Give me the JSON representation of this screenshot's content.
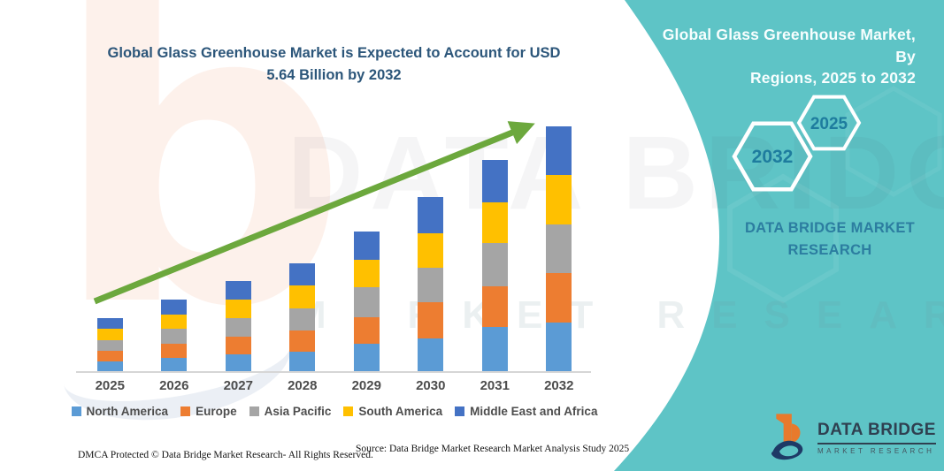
{
  "chart": {
    "title_line1": "Global Glass Greenhouse Market is Expected to Account for USD",
    "title_line2": "5.64 Billion by 2032"
  },
  "chart_data": {
    "type": "bar",
    "stacked": true,
    "title": "Global Glass Greenhouse Market is Expected to Account for USD 5.64 Billion by 2032",
    "categories": [
      "2025",
      "2026",
      "2027",
      "2028",
      "2029",
      "2030",
      "2031",
      "2032"
    ],
    "series": [
      {
        "name": "North America",
        "color": "#5B9BD5",
        "values": [
          0.23,
          0.31,
          0.39,
          0.45,
          0.63,
          0.76,
          1.01,
          1.12
        ]
      },
      {
        "name": "Europe",
        "color": "#ED7D31",
        "values": [
          0.24,
          0.32,
          0.41,
          0.49,
          0.62,
          0.83,
          0.94,
          1.14
        ]
      },
      {
        "name": "Asia Pacific",
        "color": "#A5A5A5",
        "values": [
          0.25,
          0.34,
          0.43,
          0.51,
          0.68,
          0.8,
          1.0,
          1.12
        ]
      },
      {
        "name": "South America",
        "color": "#FFC000",
        "values": [
          0.26,
          0.34,
          0.43,
          0.53,
          0.64,
          0.78,
          0.94,
          1.14
        ]
      },
      {
        "name": "Middle East and Africa",
        "color": "#4472C4",
        "values": [
          0.24,
          0.34,
          0.42,
          0.5,
          0.65,
          0.84,
          0.98,
          1.12
        ]
      }
    ],
    "totals": [
      1.22,
      1.65,
      2.08,
      2.48,
      3.22,
      4.01,
      4.87,
      5.64
    ],
    "units": "USD Billion (estimated from bar heights; labeled 2032 total = USD 5.64 Billion)",
    "xlabel": "",
    "ylabel": "",
    "y_axis_shown": false,
    "gridlines": false,
    "legend_position": "bottom",
    "annotation": "green upward trend arrow from 2025 toward 2032"
  },
  "side_panel": {
    "heading_line1": "Global Glass Greenhouse Market, By",
    "heading_line2": "Regions, 2025 to 2032",
    "hexagon_large_label": "2032",
    "hexagon_small_label": "2025",
    "brand_line1": "DATA BRIDGE MARKET",
    "brand_line2": "RESEARCH",
    "panel_color": "#5EC4C6",
    "hexagon_text_color": "#1E7C9E"
  },
  "logo": {
    "name_text": "DATA BRIDGE",
    "tagline_text": "MARKET RESEARCH"
  },
  "footer": {
    "dmca_text": "DMCA Protected © Data Bridge Market Research-  All Rights Reserved.",
    "source_text": "Source: Data Bridge Market Research  Market Analysis Study 2025"
  },
  "watermarks": {
    "letter": "b",
    "text_primary": "DATA BRIDGE",
    "text_secondary": "MARKET RESEARCH"
  },
  "accents": {
    "arrow_green": "#6CA83D",
    "title_blue": "#2C567A"
  }
}
